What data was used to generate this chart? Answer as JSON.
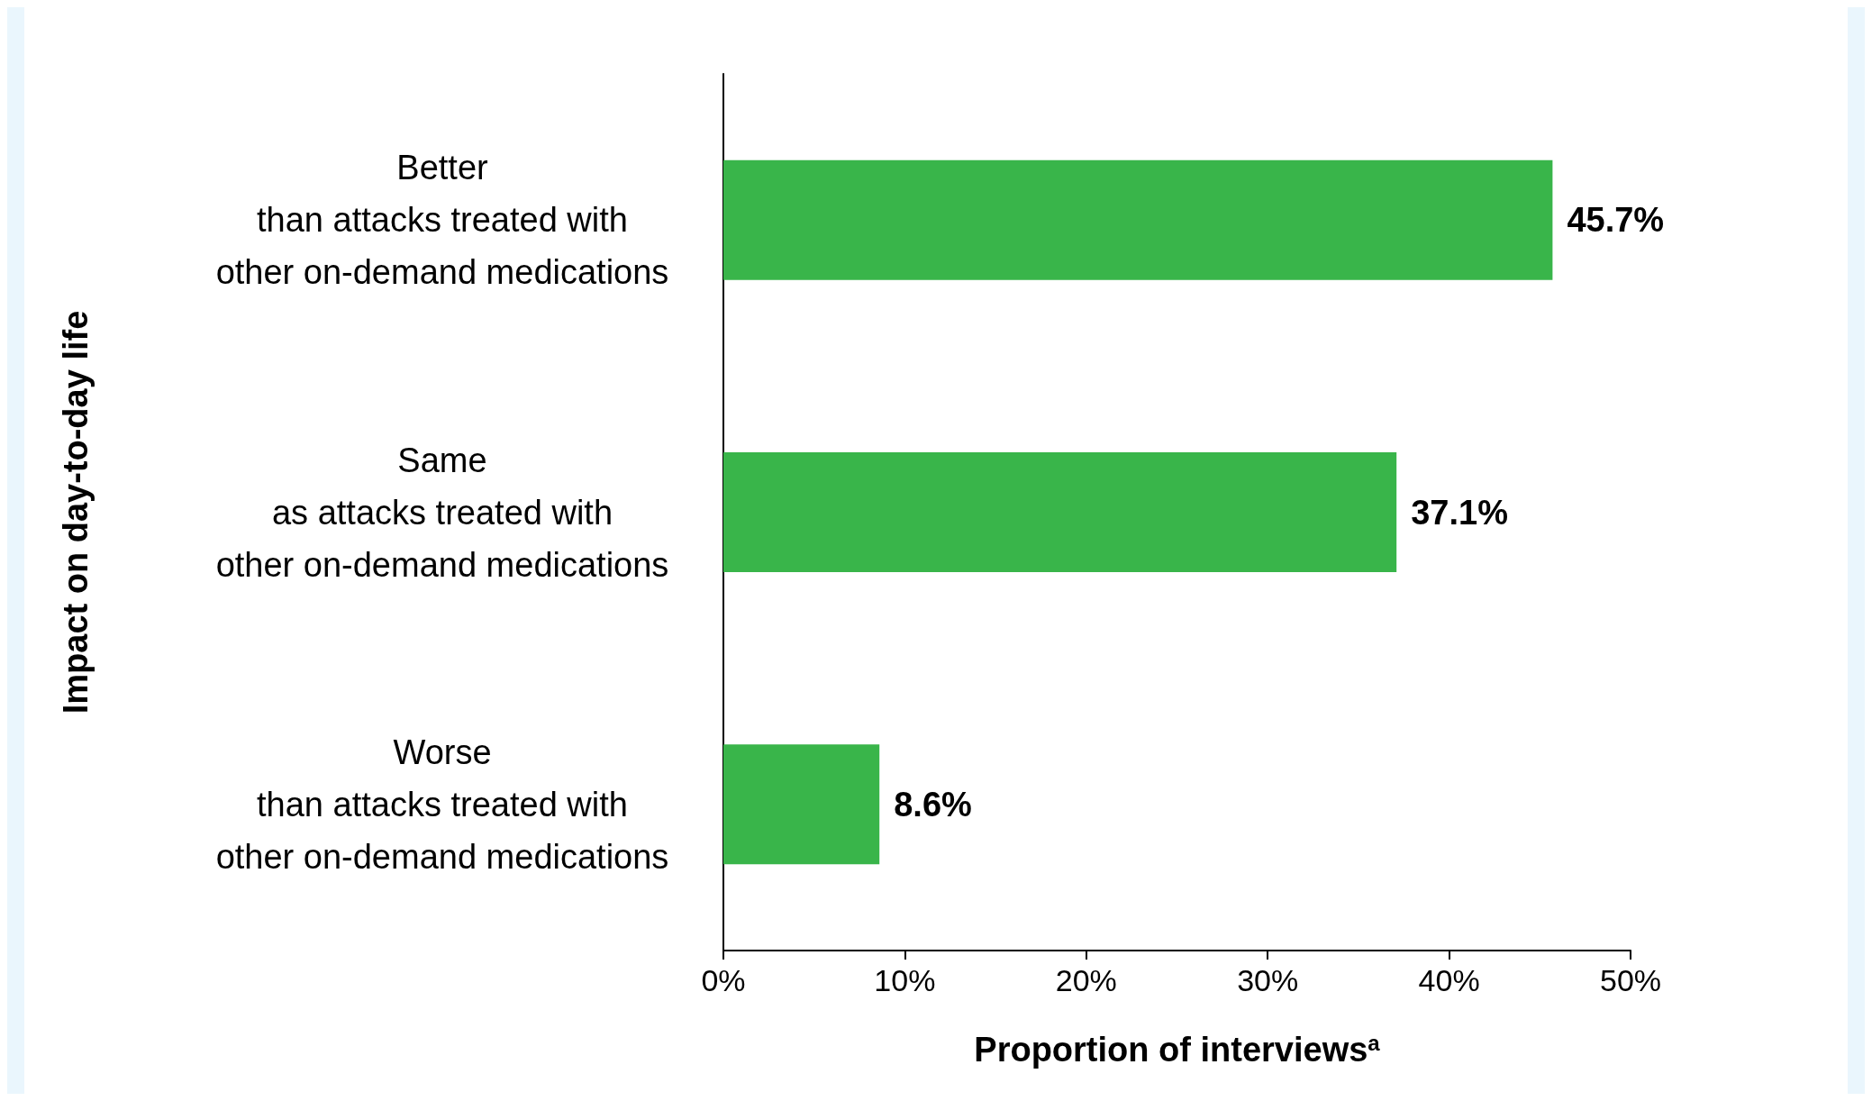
{
  "chart_data": {
    "type": "bar",
    "orientation": "horizontal",
    "categories": [
      "Better\nthan attacks treated with\nother on-demand medications",
      "Same\nas attacks treated with\nother on-demand medications",
      "Worse\nthan attacks treated with\nother on-demand medications"
    ],
    "values": [
      45.7,
      37.1,
      8.6
    ],
    "value_labels": [
      "45.7%",
      "37.1%",
      "8.6%"
    ],
    "color": "#39b54a",
    "xlim": [
      0,
      50
    ],
    "xticks": [
      {
        "value": 0,
        "label": "0%"
      },
      {
        "value": 10,
        "label": "10%"
      },
      {
        "value": 20,
        "label": "20%"
      },
      {
        "value": 30,
        "label": "30%"
      },
      {
        "value": 40,
        "label": "40%"
      },
      {
        "value": 50,
        "label": "50%"
      }
    ],
    "xlabel": "Proportion of interviews$^{a}$",
    "ylabel": "Impact on day-to-day life",
    "grid": false
  }
}
